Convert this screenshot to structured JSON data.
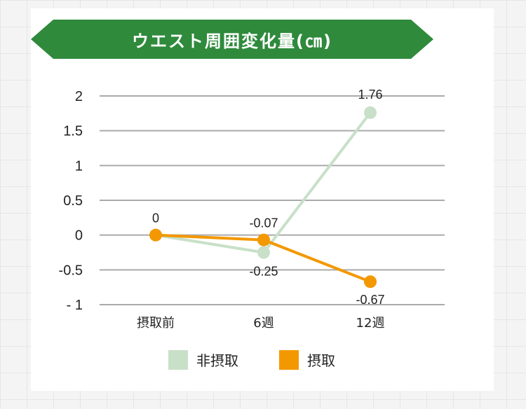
{
  "chart_data": {
    "type": "line",
    "title": "ウエスト周囲変化量(㎝)",
    "categories": [
      "摂取前",
      "6週",
      "12週"
    ],
    "series": [
      {
        "name": "非摂取",
        "color": "#c8e0c8",
        "values": [
          0,
          -0.25,
          1.76
        ],
        "labels": [
          "",
          "-0.25",
          "1.76"
        ]
      },
      {
        "name": "摂取",
        "color": "#f39800",
        "values": [
          0,
          -0.07,
          -0.67
        ],
        "labels": [
          "0",
          "-0.07",
          "-0.67"
        ]
      }
    ],
    "yticks": [
      "2",
      "1.5",
      "1",
      "0.5",
      "0",
      "-0.5",
      "- 1"
    ],
    "ylim": [
      -1,
      2
    ],
    "grid": true,
    "legend_position": "bottom"
  },
  "colors": {
    "banner": "#2f8a3c",
    "grid": "#aaaaaa",
    "non_intake": "#c8e0c8",
    "intake": "#f39800"
  }
}
